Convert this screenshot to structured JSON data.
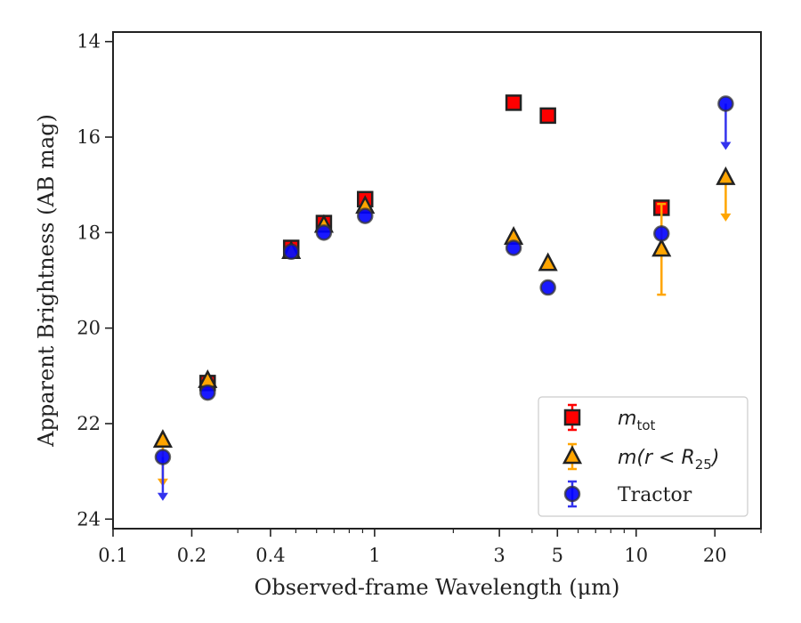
{
  "chart_data": {
    "type": "scatter",
    "title": "",
    "xlabel": "Observed-frame Wavelength (μm)",
    "ylabel": "Apparent Brightness (AB mag)",
    "x_scale": "log",
    "xlim": [
      0.1,
      30
    ],
    "ylim": [
      24.2,
      13.8
    ],
    "y_inverted": true,
    "grid": false,
    "legend_position": "lower-right",
    "x_ticks": [
      {
        "value": 0.1,
        "label": "0.1"
      },
      {
        "value": 0.2,
        "label": "0.2"
      },
      {
        "value": 0.4,
        "label": "0.4"
      },
      {
        "value": 1,
        "label": "1"
      },
      {
        "value": 3,
        "label": "3"
      },
      {
        "value": 5,
        "label": "5"
      },
      {
        "value": 10,
        "label": "10"
      },
      {
        "value": 20,
        "label": "20"
      }
    ],
    "y_ticks": [
      {
        "value": 14,
        "label": "14"
      },
      {
        "value": 16,
        "label": "16"
      },
      {
        "value": 18,
        "label": "18"
      },
      {
        "value": 20,
        "label": "20"
      },
      {
        "value": 22,
        "label": "22"
      },
      {
        "value": 24,
        "label": "24"
      }
    ],
    "series": [
      {
        "name": "m_tot",
        "legend_main": "m",
        "legend_sub": "tot",
        "marker": "square",
        "color": "#ff0000",
        "error_color": "#ff0000",
        "points": [
          {
            "x": 0.23,
            "y": 21.15
          },
          {
            "x": 0.48,
            "y": 18.32
          },
          {
            "x": 0.64,
            "y": 17.8
          },
          {
            "x": 0.92,
            "y": 17.3
          },
          {
            "x": 3.4,
            "y": 15.28
          },
          {
            "x": 4.6,
            "y": 15.55
          },
          {
            "x": 12.5,
            "y": 17.48
          }
        ]
      },
      {
        "name": "m(r < R25)",
        "legend_main": "m(r < R",
        "legend_sub": "25",
        "legend_tail": ")",
        "marker": "triangle",
        "color": "#ffa500",
        "error_color": "#ffa500",
        "points": [
          {
            "x": 0.155,
            "y": 22.35,
            "upper_limit_to": 23.3
          },
          {
            "x": 0.23,
            "y": 21.1
          },
          {
            "x": 0.48,
            "y": 18.4
          },
          {
            "x": 0.64,
            "y": 17.85
          },
          {
            "x": 0.92,
            "y": 17.45
          },
          {
            "x": 3.4,
            "y": 18.1
          },
          {
            "x": 4.6,
            "y": 18.65
          },
          {
            "x": 12.5,
            "y": 18.35,
            "yerr": 0.95
          },
          {
            "x": 22,
            "y": 16.85,
            "upper_limit_to": 17.75
          }
        ]
      },
      {
        "name": "Tractor",
        "legend_main": "Tractor",
        "marker": "circle",
        "color": "#0000ff",
        "error_color": "#3333ee",
        "points": [
          {
            "x": 0.155,
            "y": 22.7,
            "upper_limit_to": 23.6
          },
          {
            "x": 0.23,
            "y": 21.35
          },
          {
            "x": 0.48,
            "y": 18.4
          },
          {
            "x": 0.64,
            "y": 18.0
          },
          {
            "x": 0.92,
            "y": 17.65
          },
          {
            "x": 3.4,
            "y": 18.32
          },
          {
            "x": 4.6,
            "y": 19.15
          },
          {
            "x": 12.5,
            "y": 18.02
          },
          {
            "x": 22,
            "y": 15.3,
            "upper_limit_to": 16.25
          }
        ]
      }
    ]
  }
}
